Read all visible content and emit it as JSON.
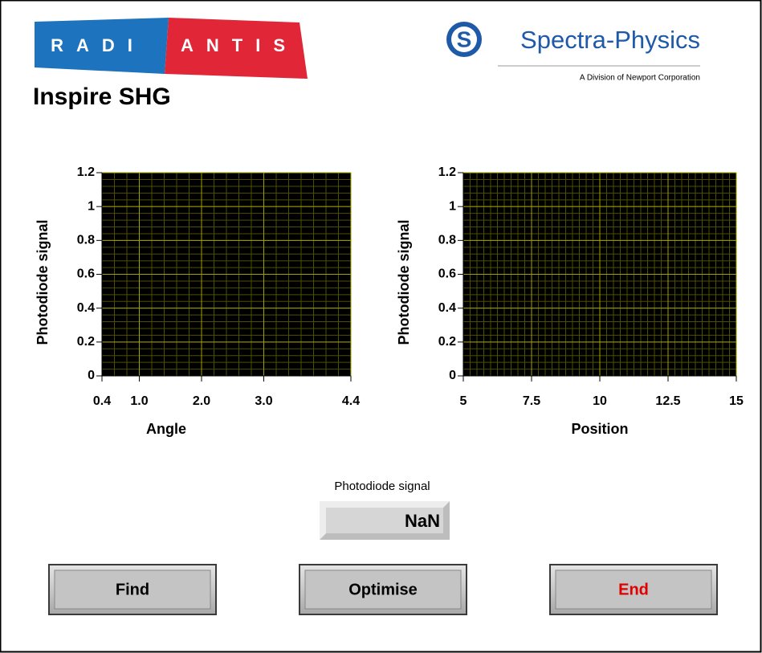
{
  "logos": {
    "radiantis": {
      "left": "RADI",
      "right": "ANTIS"
    },
    "spectra": {
      "name": "Spectra-Physics",
      "tagline": "A Division of Newport Corporation"
    }
  },
  "title": "Inspire SHG",
  "graphs": [
    {
      "y_label": "Photodiode signal",
      "x_label": "Angle",
      "xlim": [
        0.4,
        4.4
      ],
      "ylim": [
        0,
        1.2
      ],
      "xticks": [
        0.4,
        {
          "value": 1,
          "label": "1.0"
        },
        {
          "value": 2,
          "label": "2.0"
        },
        {
          "value": 3,
          "label": "3.0"
        },
        4.4
      ],
      "yticks": [
        0,
        0.2,
        0.4,
        0.6,
        0.8,
        1,
        1.2
      ]
    },
    {
      "y_label": "Photodiode signal",
      "x_label": "Position",
      "xlim": [
        5,
        15
      ],
      "ylim": [
        0,
        1.2
      ],
      "xticks": [
        5,
        7.5,
        10,
        12.5,
        15
      ],
      "yticks": [
        0,
        0.2,
        0.4,
        0.6,
        0.8,
        1,
        1.2
      ]
    }
  ],
  "indicator": {
    "label": "Photodiode signal",
    "value": "NaN"
  },
  "buttons": [
    "Find",
    "Optimise",
    "End"
  ]
}
